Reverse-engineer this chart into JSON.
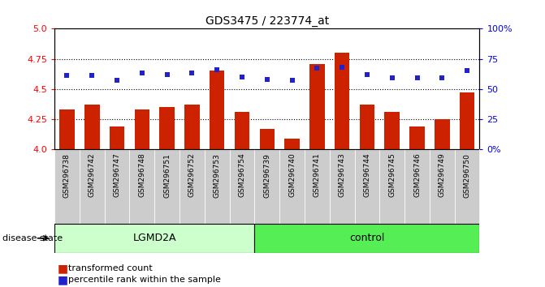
{
  "title": "GDS3475 / 223774_at",
  "samples": [
    "GSM296738",
    "GSM296742",
    "GSM296747",
    "GSM296748",
    "GSM296751",
    "GSM296752",
    "GSM296753",
    "GSM296754",
    "GSM296739",
    "GSM296740",
    "GSM296741",
    "GSM296743",
    "GSM296744",
    "GSM296745",
    "GSM296746",
    "GSM296749",
    "GSM296750"
  ],
  "bar_values": [
    4.33,
    4.37,
    4.19,
    4.33,
    4.35,
    4.37,
    4.65,
    4.31,
    4.17,
    4.09,
    4.71,
    4.8,
    4.37,
    4.31,
    4.19,
    4.25,
    4.47
  ],
  "dot_values": [
    4.61,
    4.61,
    4.57,
    4.63,
    4.62,
    4.63,
    4.66,
    4.6,
    4.58,
    4.57,
    4.67,
    4.68,
    4.62,
    4.59,
    4.59,
    4.59,
    4.65
  ],
  "ylim_left": [
    4.0,
    5.0
  ],
  "yticks_left": [
    4.0,
    4.25,
    4.5,
    4.75,
    5.0
  ],
  "ytick_labels_right": [
    "0%",
    "25",
    "50",
    "75",
    "100%"
  ],
  "bar_color": "#CC2200",
  "dot_color": "#2222CC",
  "grid_dotted_values": [
    4.25,
    4.5,
    4.75
  ],
  "n_lgmd2a": 8,
  "lgmd2a_color": "#CCFFCC",
  "control_color": "#55EE55",
  "label_bar": "transformed count",
  "label_dot": "percentile rank within the sample",
  "disease_state_label": "disease state",
  "lgmd2a_label": "LGMD2A",
  "control_label": "control",
  "tick_bg_color": "#CCCCCC"
}
